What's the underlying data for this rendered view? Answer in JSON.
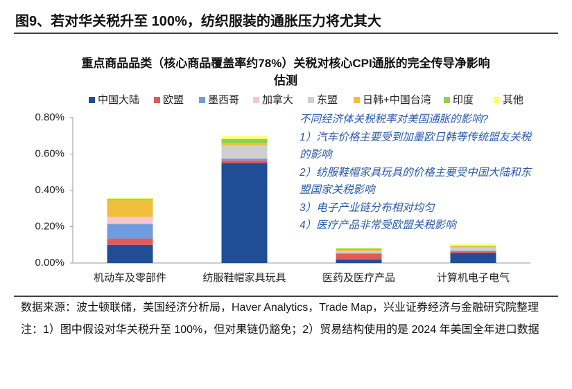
{
  "figure_title": "图9、若对华关税升至 100%，纺织服装的通胀压力将尤其大",
  "chart_data": {
    "type": "stacked-bar",
    "title": "重点商品品类（核心商品覆盖率约78%）关税对核心CPI通胀的完全传导净影响估测",
    "categories": [
      "机动车及零部件",
      "纺服鞋帽家具玩具",
      "医药及医疗产品",
      "计算机电子电气"
    ],
    "series": [
      {
        "name": "中国大陆",
        "color": "#1f4e96",
        "values": [
          0.1,
          0.55,
          0.02,
          0.055
        ]
      },
      {
        "name": "欧盟",
        "color": "#e05a5a",
        "values": [
          0.035,
          0.015,
          0.03,
          0.008
        ]
      },
      {
        "name": "墨西哥",
        "color": "#6f9ce0",
        "values": [
          0.08,
          0.01,
          0.005,
          0.006
        ]
      },
      {
        "name": "加拿大",
        "color": "#f7c6cc",
        "values": [
          0.04,
          0.003,
          0.003,
          0.002
        ]
      },
      {
        "name": "东盟",
        "color": "#cfcfcf",
        "values": [
          0.0,
          0.07,
          0.008,
          0.014
        ]
      },
      {
        "name": "日韩+中国台湾",
        "color": "#f2be3c",
        "values": [
          0.09,
          0.01,
          0.006,
          0.006
        ]
      },
      {
        "name": "印度",
        "color": "#92d050",
        "values": [
          0.008,
          0.025,
          0.008,
          0.004
        ]
      },
      {
        "name": "其他",
        "color": "#ffff66",
        "values": [
          0.006,
          0.015,
          0.003,
          0.008
        ]
      }
    ],
    "ylim": [
      0,
      0.8
    ],
    "yticks": [
      {
        "value": 0,
        "label": "0.00%"
      },
      {
        "value": 0.2,
        "label": "0.20%"
      },
      {
        "value": 0.4,
        "label": "0.40%"
      },
      {
        "value": 0.6,
        "label": "0.60%"
      },
      {
        "value": 0.8,
        "label": "0.80%"
      }
    ],
    "annotations": [
      "不同经济体关税税率对美国通胀的影响?",
      "1）汽车价格主要受到加墨欧日韩等传统盟友关税的影响",
      "2）纺服鞋帽家具玩具的价格主要受中国大陆和东盟国家关税影响",
      "3）电子产业链分布相对均匀",
      "4）医疗产品非常受欧盟关税影响"
    ]
  },
  "notes": [
    "数据来源：波士顿联储，美国经济分析局，Haver Analytics，Trade Map，兴业证券经济与金融研究院整理",
    "注：1）图中假设对华关税升至 100%，但对果链仍豁免；2）贸易结构使用的是 2024 年美国全年进口数据"
  ]
}
